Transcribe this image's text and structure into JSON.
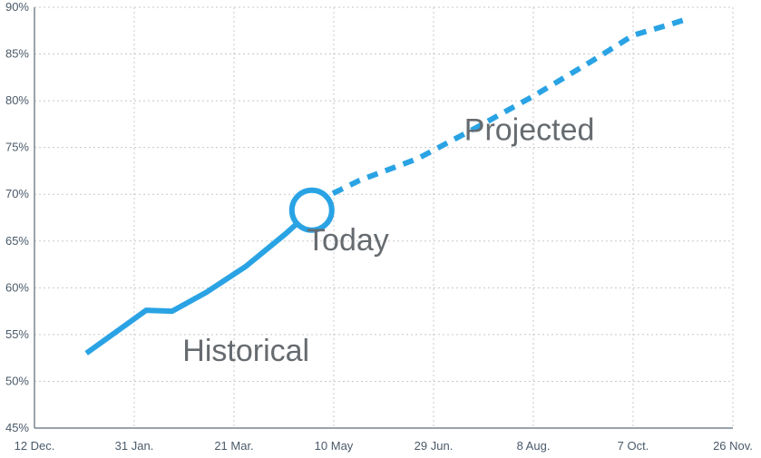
{
  "chart_data": {
    "type": "line",
    "title": "",
    "xlabel": "",
    "ylabel": "",
    "ylim": [
      45,
      90
    ],
    "y_ticks": [
      45,
      50,
      55,
      60,
      65,
      70,
      75,
      80,
      85,
      90
    ],
    "y_tick_labels": [
      "45%",
      "50%",
      "55%",
      "60%",
      "65%",
      "70%",
      "75%",
      "80%",
      "85%",
      "90%"
    ],
    "x_ticks": [
      "12 Dec.",
      "31 Jan.",
      "21 Mar.",
      "10 May",
      "29 Jun.",
      "8 Aug.",
      "7 Oct.",
      "26 Nov."
    ],
    "grid": true,
    "line_color": "#2aa3e4",
    "series": [
      {
        "name": "",
        "style": "solid",
        "points": [
          {
            "x": "2022-01-07",
            "y": 53.0
          },
          {
            "x": "2022-02-06",
            "y": 57.6
          },
          {
            "x": "2022-02-19",
            "y": 57.5
          },
          {
            "x": "2022-03-08",
            "y": 59.5
          },
          {
            "x": "2022-03-28",
            "y": 62.3
          },
          {
            "x": "2022-04-17",
            "y": 65.8
          },
          {
            "x": "2022-04-30",
            "y": 68.3
          }
        ]
      },
      {
        "name": "",
        "style": "dashed",
        "points": [
          {
            "x": "2022-05-02",
            "y": 69.2
          },
          {
            "x": "2022-05-24",
            "y": 71.5
          },
          {
            "x": "2022-06-22",
            "y": 73.8
          },
          {
            "x": "2022-07-22",
            "y": 77.2
          },
          {
            "x": "2022-08-19",
            "y": 80.5
          },
          {
            "x": "2022-09-17",
            "y": 84.2
          },
          {
            "x": "2022-10-08",
            "y": 87.0
          },
          {
            "x": "2022-10-24",
            "y": 88.0
          },
          {
            "x": "2022-11-05",
            "y": 88.8
          }
        ]
      }
    ],
    "today_marker": {
      "x": "2022-04-30",
      "y": 68.3
    },
    "annotations": [
      {
        "text": "Historical",
        "x": "2022-03-28",
        "y": 52.2
      },
      {
        "text": "Today",
        "x": "2022-05-18",
        "y": 64.0
      },
      {
        "text": "Projected",
        "x": "2022-08-17",
        "y": 75.8
      }
    ]
  }
}
